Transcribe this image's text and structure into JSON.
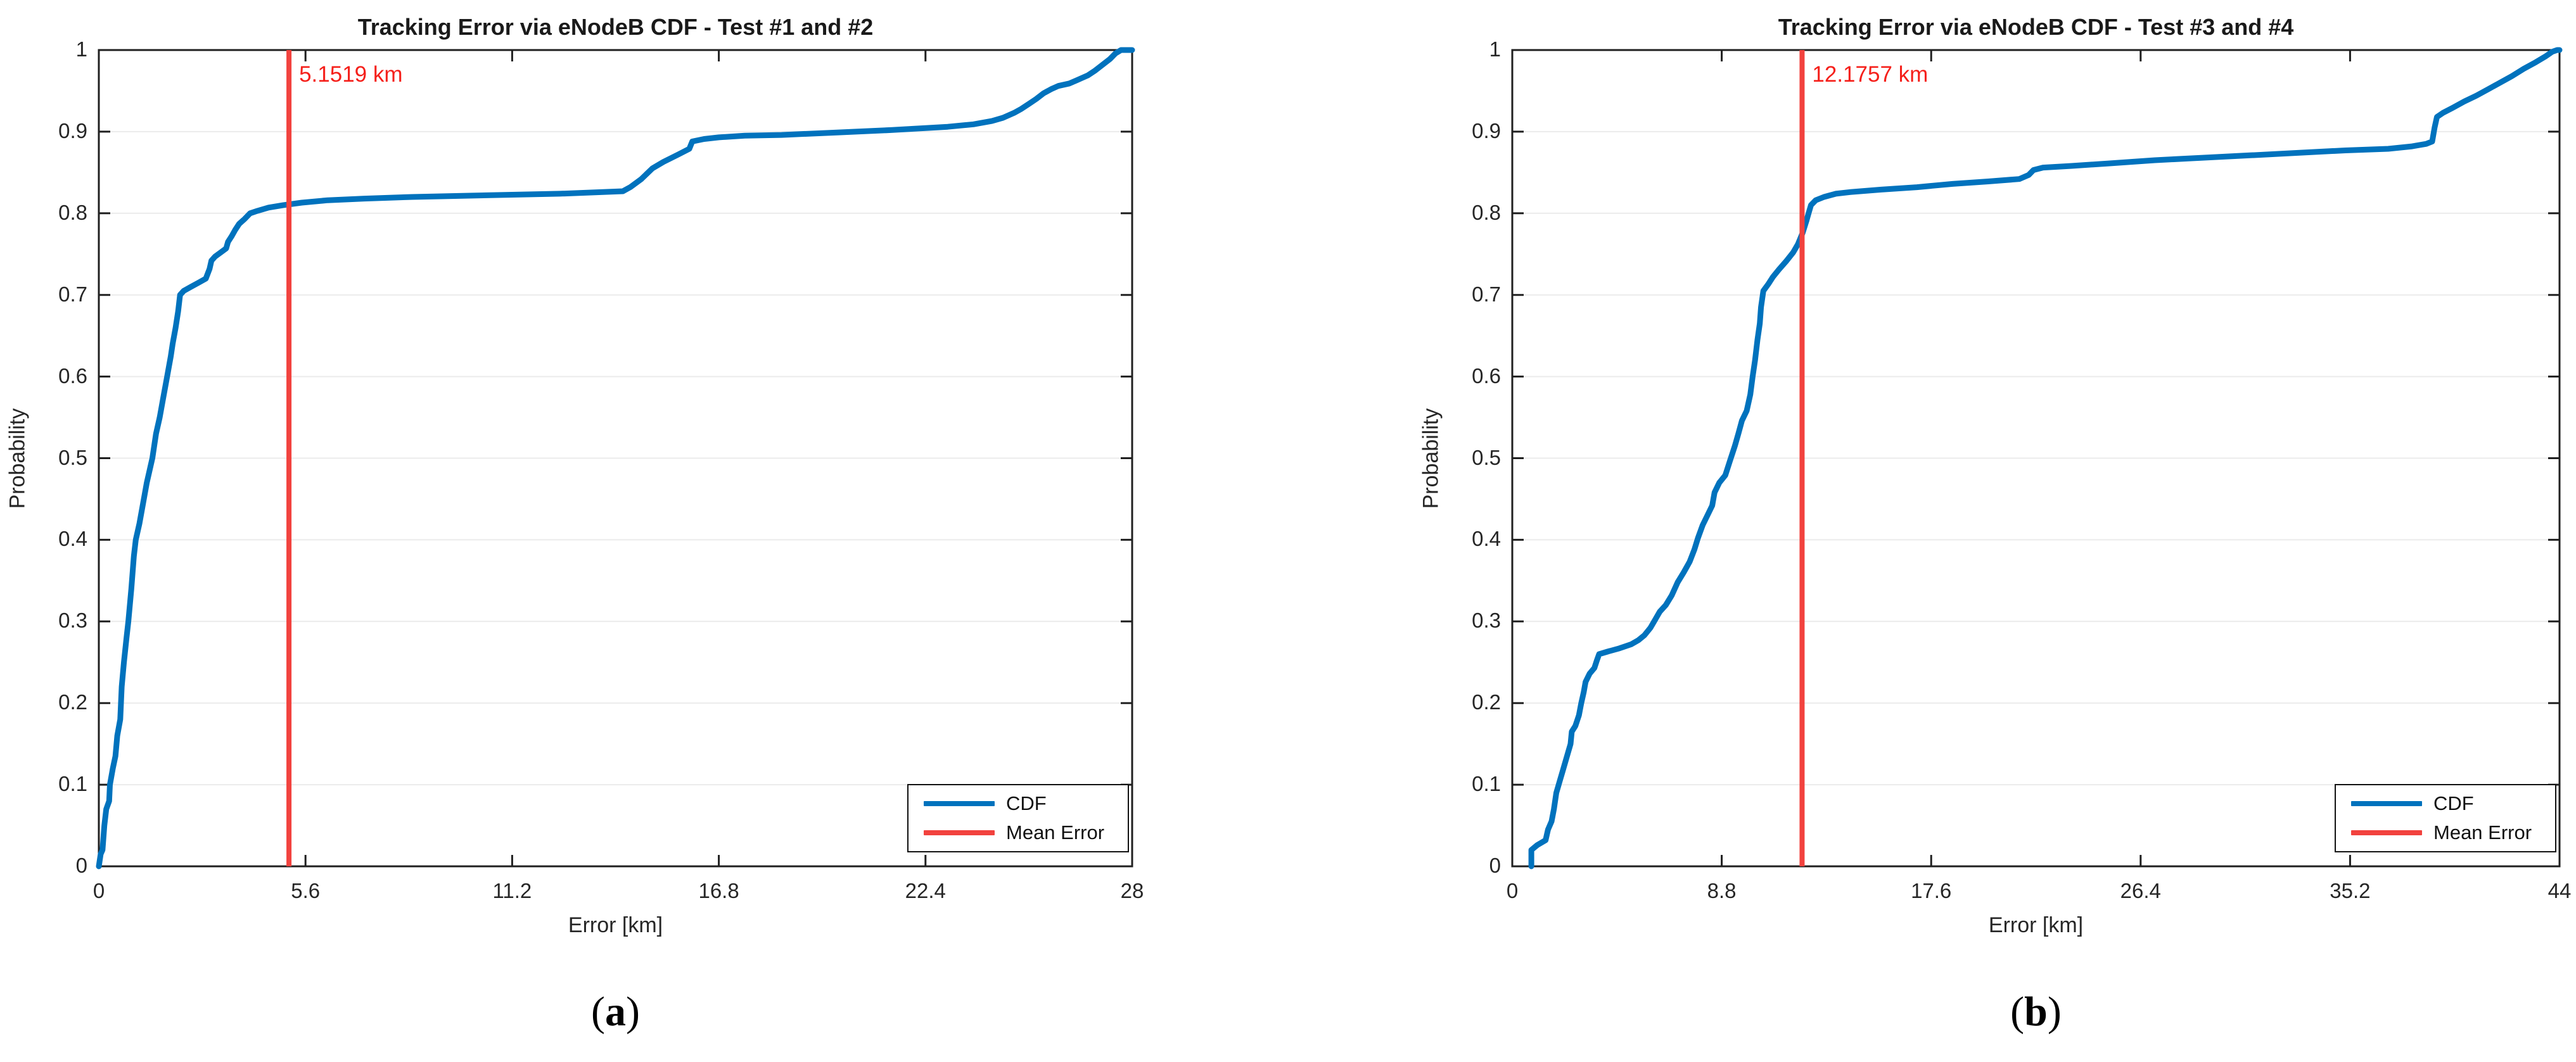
{
  "colors": {
    "cdf_blue": "#0072BD",
    "mean_error_red": "#F2423E",
    "annotation_red": "#F5201B",
    "axis": "#202020",
    "grid": "#EBEBEB",
    "text": "#262626",
    "background": "#FFFFFF"
  },
  "chart_data": [
    {
      "type": "line",
      "title": "Tracking Error via eNodeB CDF - Test #1 and #2",
      "xlabel": "Error [km]",
      "ylabel": "Probability",
      "xlim": [
        0,
        28
      ],
      "ylim": [
        0,
        1
      ],
      "xticks": [
        0,
        5.6,
        11.2,
        16.8,
        22.4,
        28
      ],
      "xtick_labels": [
        "0",
        "5.6",
        "11.2",
        "16.8",
        "22.4",
        "28"
      ],
      "yticks": [
        0,
        0.1,
        0.2,
        0.3,
        0.4,
        0.5,
        0.6,
        0.7,
        0.8,
        0.9,
        1
      ],
      "ytick_labels": [
        "0",
        "0.1",
        "0.2",
        "0.3",
        "0.4",
        "0.5",
        "0.6",
        "0.7",
        "0.8",
        "0.9",
        "1"
      ],
      "grid": "horizontal",
      "legend": {
        "position": "bottom-right",
        "entries": [
          {
            "label": "CDF",
            "color": "#0072BD"
          },
          {
            "label": "Mean Error",
            "color": "#F2423E"
          }
        ]
      },
      "mean_error_km": 5.1519,
      "annotation": "5.1519 km",
      "caption": {
        "open": "(",
        "letter": "a",
        "close": ")"
      },
      "series": [
        {
          "name": "CDF",
          "points": [
            [
              0,
              0
            ],
            [
              0.05,
              0.015
            ],
            [
              0.1,
              0.02
            ],
            [
              0.15,
              0.05
            ],
            [
              0.2,
              0.07
            ],
            [
              0.28,
              0.08
            ],
            [
              0.3,
              0.1
            ],
            [
              0.38,
              0.12
            ],
            [
              0.45,
              0.135
            ],
            [
              0.5,
              0.16
            ],
            [
              0.58,
              0.18
            ],
            [
              0.62,
              0.22
            ],
            [
              0.68,
              0.25
            ],
            [
              0.75,
              0.28
            ],
            [
              0.8,
              0.3
            ],
            [
              0.88,
              0.34
            ],
            [
              0.95,
              0.38
            ],
            [
              1.0,
              0.4
            ],
            [
              1.1,
              0.42
            ],
            [
              1.2,
              0.445
            ],
            [
              1.3,
              0.47
            ],
            [
              1.45,
              0.5
            ],
            [
              1.55,
              0.53
            ],
            [
              1.65,
              0.55
            ],
            [
              1.75,
              0.575
            ],
            [
              1.85,
              0.6
            ],
            [
              1.95,
              0.625
            ],
            [
              2.0,
              0.64
            ],
            [
              2.08,
              0.66
            ],
            [
              2.15,
              0.68
            ],
            [
              2.2,
              0.7
            ],
            [
              2.3,
              0.705
            ],
            [
              2.5,
              0.71
            ],
            [
              2.7,
              0.715
            ],
            [
              2.9,
              0.72
            ],
            [
              3.0,
              0.732
            ],
            [
              3.05,
              0.742
            ],
            [
              3.15,
              0.747
            ],
            [
              3.3,
              0.752
            ],
            [
              3.45,
              0.757
            ],
            [
              3.5,
              0.765
            ],
            [
              3.6,
              0.772
            ],
            [
              3.7,
              0.78
            ],
            [
              3.8,
              0.787
            ],
            [
              3.95,
              0.793
            ],
            [
              4.1,
              0.8
            ],
            [
              4.3,
              0.803
            ],
            [
              4.6,
              0.807
            ],
            [
              5.0,
              0.81
            ],
            [
              5.5,
              0.813
            ],
            [
              6.2,
              0.816
            ],
            [
              7.2,
              0.818
            ],
            [
              8.5,
              0.82
            ],
            [
              10.5,
              0.822
            ],
            [
              12.5,
              0.824
            ],
            [
              14.2,
              0.827
            ],
            [
              14.4,
              0.832
            ],
            [
              14.7,
              0.842
            ],
            [
              15.0,
              0.855
            ],
            [
              15.3,
              0.863
            ],
            [
              15.7,
              0.872
            ],
            [
              16.0,
              0.879
            ],
            [
              16.08,
              0.888
            ],
            [
              16.4,
              0.891
            ],
            [
              16.8,
              0.893
            ],
            [
              17.5,
              0.895
            ],
            [
              18.5,
              0.896
            ],
            [
              20.0,
              0.899
            ],
            [
              21.5,
              0.902
            ],
            [
              23.0,
              0.906
            ],
            [
              23.7,
              0.909
            ],
            [
              24.2,
              0.913
            ],
            [
              24.5,
              0.917
            ],
            [
              24.8,
              0.923
            ],
            [
              25.0,
              0.928
            ],
            [
              25.2,
              0.934
            ],
            [
              25.4,
              0.94
            ],
            [
              25.6,
              0.947
            ],
            [
              25.8,
              0.952
            ],
            [
              26.0,
              0.956
            ],
            [
              26.3,
              0.959
            ],
            [
              26.5,
              0.963
            ],
            [
              26.8,
              0.969
            ],
            [
              27.0,
              0.975
            ],
            [
              27.2,
              0.982
            ],
            [
              27.4,
              0.989
            ],
            [
              27.55,
              0.996
            ],
            [
              27.7,
              1.0
            ],
            [
              28,
              1.0
            ]
          ]
        },
        {
          "name": "Mean Error",
          "x": 5.1519
        }
      ]
    },
    {
      "type": "line",
      "title": "Tracking Error via eNodeB CDF - Test #3 and #4",
      "xlabel": "Error [km]",
      "ylabel": "Probability",
      "xlim": [
        0,
        44
      ],
      "ylim": [
        0,
        1
      ],
      "xticks": [
        0,
        8.8,
        17.6,
        26.4,
        35.2,
        44
      ],
      "xtick_labels": [
        "0",
        "8.8",
        "17.6",
        "26.4",
        "35.2",
        "44"
      ],
      "yticks": [
        0,
        0.1,
        0.2,
        0.3,
        0.4,
        0.5,
        0.6,
        0.7,
        0.8,
        0.9,
        1
      ],
      "ytick_labels": [
        "0",
        "0.1",
        "0.2",
        "0.3",
        "0.4",
        "0.5",
        "0.6",
        "0.7",
        "0.8",
        "0.9",
        "1"
      ],
      "grid": "horizontal",
      "legend": {
        "position": "bottom-right",
        "entries": [
          {
            "label": "CDF",
            "color": "#0072BD"
          },
          {
            "label": "Mean Error",
            "color": "#F2423E"
          }
        ]
      },
      "mean_error_km": 12.1757,
      "annotation": "12.1757 km",
      "caption": {
        "open": "(",
        "letter": "b",
        "close": ")"
      },
      "series": [
        {
          "name": "CDF",
          "points": [
            [
              0.8,
              0
            ],
            [
              0.8,
              0.02
            ],
            [
              1.05,
              0.026
            ],
            [
              1.4,
              0.032
            ],
            [
              1.5,
              0.045
            ],
            [
              1.65,
              0.055
            ],
            [
              1.75,
              0.07
            ],
            [
              1.85,
              0.09
            ],
            [
              2.0,
              0.105
            ],
            [
              2.15,
              0.12
            ],
            [
              2.3,
              0.135
            ],
            [
              2.45,
              0.15
            ],
            [
              2.5,
              0.165
            ],
            [
              2.65,
              0.172
            ],
            [
              2.8,
              0.185
            ],
            [
              2.9,
              0.2
            ],
            [
              3.0,
              0.213
            ],
            [
              3.08,
              0.226
            ],
            [
              3.25,
              0.236
            ],
            [
              3.45,
              0.243
            ],
            [
              3.55,
              0.252
            ],
            [
              3.65,
              0.26
            ],
            [
              4.0,
              0.263
            ],
            [
              4.5,
              0.267
            ],
            [
              5.0,
              0.272
            ],
            [
              5.3,
              0.277
            ],
            [
              5.55,
              0.283
            ],
            [
              5.8,
              0.292
            ],
            [
              6.0,
              0.302
            ],
            [
              6.2,
              0.312
            ],
            [
              6.45,
              0.32
            ],
            [
              6.7,
              0.332
            ],
            [
              6.95,
              0.348
            ],
            [
              7.2,
              0.36
            ],
            [
              7.45,
              0.373
            ],
            [
              7.65,
              0.388
            ],
            [
              7.8,
              0.402
            ],
            [
              8.0,
              0.418
            ],
            [
              8.2,
              0.43
            ],
            [
              8.4,
              0.442
            ],
            [
              8.5,
              0.458
            ],
            [
              8.7,
              0.47
            ],
            [
              8.95,
              0.479
            ],
            [
              9.15,
              0.497
            ],
            [
              9.35,
              0.515
            ],
            [
              9.5,
              0.53
            ],
            [
              9.65,
              0.546
            ],
            [
              9.85,
              0.558
            ],
            [
              10.0,
              0.578
            ],
            [
              10.1,
              0.6
            ],
            [
              10.2,
              0.62
            ],
            [
              10.3,
              0.645
            ],
            [
              10.4,
              0.665
            ],
            [
              10.45,
              0.685
            ],
            [
              10.55,
              0.705
            ],
            [
              10.75,
              0.713
            ],
            [
              10.95,
              0.722
            ],
            [
              11.2,
              0.731
            ],
            [
              11.5,
              0.741
            ],
            [
              11.8,
              0.752
            ],
            [
              12.0,
              0.762
            ],
            [
              12.2,
              0.776
            ],
            [
              12.35,
              0.79
            ],
            [
              12.45,
              0.8
            ],
            [
              12.55,
              0.81
            ],
            [
              12.75,
              0.816
            ],
            [
              13.1,
              0.82
            ],
            [
              13.6,
              0.824
            ],
            [
              14.2,
              0.826
            ],
            [
              15.5,
              0.829
            ],
            [
              17.0,
              0.832
            ],
            [
              18.5,
              0.836
            ],
            [
              20.0,
              0.839
            ],
            [
              21.3,
              0.842
            ],
            [
              21.7,
              0.847
            ],
            [
              21.9,
              0.853
            ],
            [
              22.3,
              0.856
            ],
            [
              23.5,
              0.858
            ],
            [
              25.0,
              0.861
            ],
            [
              27.0,
              0.865
            ],
            [
              29.0,
              0.868
            ],
            [
              31.0,
              0.871
            ],
            [
              33.0,
              0.874
            ],
            [
              35.0,
              0.877
            ],
            [
              36.8,
              0.879
            ],
            [
              37.8,
              0.882
            ],
            [
              38.4,
              0.885
            ],
            [
              38.65,
              0.888
            ],
            [
              38.75,
              0.905
            ],
            [
              38.85,
              0.918
            ],
            [
              39.1,
              0.923
            ],
            [
              39.5,
              0.929
            ],
            [
              40.0,
              0.937
            ],
            [
              40.5,
              0.944
            ],
            [
              41.0,
              0.952
            ],
            [
              41.5,
              0.96
            ],
            [
              42.0,
              0.968
            ],
            [
              42.5,
              0.977
            ],
            [
              43.0,
              0.985
            ],
            [
              43.4,
              0.992
            ],
            [
              43.7,
              0.998
            ],
            [
              43.9,
              1.0
            ],
            [
              44,
              1.0
            ]
          ]
        },
        {
          "name": "Mean Error",
          "x": 12.1757
        }
      ]
    }
  ]
}
